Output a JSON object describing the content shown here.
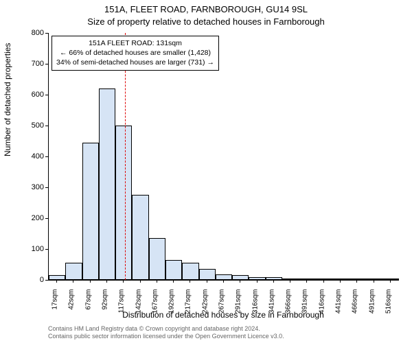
{
  "chart": {
    "type": "histogram",
    "title_main": "151A, FLEET ROAD, FARNBOROUGH, GU14 9SL",
    "title_sub": "Size of property relative to detached houses in Farnborough",
    "ylabel": "Number of detached properties",
    "xlabel": "Distribution of detached houses by size in Farnborough",
    "ylim": [
      0,
      800
    ],
    "ytick_step": 100,
    "yticks": [
      0,
      100,
      200,
      300,
      400,
      500,
      600,
      700,
      800
    ],
    "xtick_labels": [
      "17sqm",
      "42sqm",
      "67sqm",
      "92sqm",
      "117sqm",
      "142sqm",
      "167sqm",
      "192sqm",
      "217sqm",
      "242sqm",
      "267sqm",
      "291sqm",
      "316sqm",
      "341sqm",
      "366sqm",
      "391sqm",
      "416sqm",
      "441sqm",
      "466sqm",
      "491sqm",
      "516sqm"
    ],
    "values": [
      15,
      55,
      445,
      620,
      500,
      275,
      135,
      65,
      55,
      35,
      18,
      15,
      10,
      10,
      5,
      4,
      3,
      3,
      2,
      2,
      2
    ],
    "bar_fill": "#d6e4f5",
    "bar_border": "#000000",
    "background_color": "#ffffff",
    "reference_line": {
      "bin_index": 4,
      "fraction_within_bin": 0.56,
      "color": "#dd0000"
    },
    "annotation": {
      "line1": "151A FLEET ROAD: 131sqm",
      "line2": "← 66% of detached houses are smaller (1,428)",
      "line3": "34% of semi-detached houses are larger (731) →"
    },
    "footer_line1": "Contains HM Land Registry data © Crown copyright and database right 2024.",
    "footer_line2": "Contains public sector information licensed under the Open Government Licence v3.0.",
    "title_fontsize": 13,
    "label_fontsize": 12,
    "tick_fontsize": 11,
    "annotation_fontsize": 10.5,
    "footer_fontsize": 9
  }
}
